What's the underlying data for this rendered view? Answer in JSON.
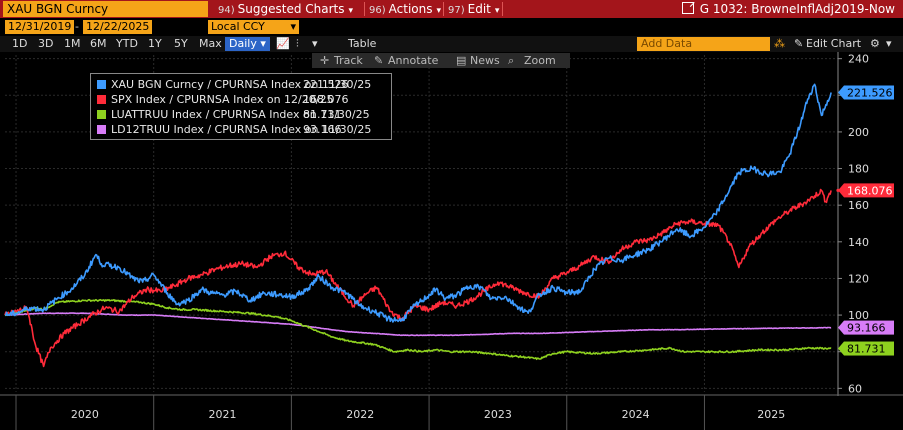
{
  "topbar": {
    "ticker": "XAU BGN Curncy",
    "suggested_num": "94)",
    "suggested_label": "Suggested Charts",
    "actions_num": "96)",
    "actions_label": "Actions",
    "edit_num": "97)",
    "edit_label": "Edit",
    "chart_title": "G 1032: BrowneInflAdj2019-Now"
  },
  "toolbar2": {
    "start_date": "12/31/2019",
    "end_date": "12/22/2025",
    "currency": "Local CCY"
  },
  "toolbar3": {
    "periods": [
      "1D",
      "3D",
      "1M",
      "6M",
      "YTD",
      "1Y",
      "5Y",
      "Max"
    ],
    "frequency": "Daily",
    "table_label": "Table",
    "add_data_placeholder": "Add Data",
    "edit_chart_label": "Edit Chart"
  },
  "chart_tools": {
    "track": "Track",
    "annotate": "Annotate",
    "news": "News",
    "zoom": "Zoom"
  },
  "colors": {
    "accent_orange": "#f5a418",
    "title_red": "#a3151b",
    "series_blue": "#3d9bff",
    "series_red": "#ff2b3a",
    "series_green": "#8ed11f",
    "series_purple": "#d77cf7"
  },
  "chart_data": {
    "type": "line",
    "ylim": [
      58,
      242
    ],
    "y_ticks": [
      60,
      80,
      100,
      120,
      140,
      160,
      180,
      200,
      220,
      240
    ],
    "x_labels": [
      "2020",
      "2021",
      "2022",
      "2023",
      "2024",
      "2025"
    ],
    "x_range": [
      2019.92,
      2025.97
    ],
    "series": [
      {
        "name": "XAU BGN Curncy / CPURNSA Index on 11/30/25",
        "last_value": "221.526",
        "color": "#3d9bff",
        "points": [
          [
            2019.92,
            100
          ],
          [
            2020.0,
            101
          ],
          [
            2020.1,
            104
          ],
          [
            2020.2,
            103
          ],
          [
            2020.3,
            109
          ],
          [
            2020.4,
            114
          ],
          [
            2020.5,
            122
          ],
          [
            2020.58,
            133
          ],
          [
            2020.62,
            128
          ],
          [
            2020.75,
            126
          ],
          [
            2020.85,
            120
          ],
          [
            2020.92,
            118
          ],
          [
            2021.0,
            122
          ],
          [
            2021.1,
            112
          ],
          [
            2021.17,
            106
          ],
          [
            2021.25,
            108
          ],
          [
            2021.35,
            114
          ],
          [
            2021.42,
            112
          ],
          [
            2021.5,
            111
          ],
          [
            2021.6,
            113
          ],
          [
            2021.7,
            108
          ],
          [
            2021.8,
            112
          ],
          [
            2021.92,
            111
          ],
          [
            2022.0,
            110
          ],
          [
            2022.1,
            113
          ],
          [
            2022.2,
            121
          ],
          [
            2022.3,
            115
          ],
          [
            2022.4,
            112
          ],
          [
            2022.5,
            105
          ],
          [
            2022.6,
            102
          ],
          [
            2022.7,
            98
          ],
          [
            2022.8,
            97
          ],
          [
            2022.88,
            104
          ],
          [
            2022.95,
            108
          ],
          [
            2023.05,
            114
          ],
          [
            2023.12,
            109
          ],
          [
            2023.2,
            111
          ],
          [
            2023.3,
            116
          ],
          [
            2023.38,
            115
          ],
          [
            2023.45,
            109
          ],
          [
            2023.55,
            110
          ],
          [
            2023.62,
            106
          ],
          [
            2023.72,
            101
          ],
          [
            2023.8,
            111
          ],
          [
            2023.9,
            115
          ],
          [
            2024.0,
            112
          ],
          [
            2024.1,
            113
          ],
          [
            2024.2,
            125
          ],
          [
            2024.3,
            131
          ],
          [
            2024.4,
            130
          ],
          [
            2024.5,
            133
          ],
          [
            2024.6,
            136
          ],
          [
            2024.7,
            141
          ],
          [
            2024.8,
            147
          ],
          [
            2024.9,
            143
          ],
          [
            2025.0,
            148
          ],
          [
            2025.08,
            155
          ],
          [
            2025.15,
            164
          ],
          [
            2025.25,
            178
          ],
          [
            2025.35,
            180
          ],
          [
            2025.45,
            177
          ],
          [
            2025.55,
            178
          ],
          [
            2025.62,
            188
          ],
          [
            2025.7,
            205
          ],
          [
            2025.75,
            218
          ],
          [
            2025.8,
            226
          ],
          [
            2025.85,
            209
          ],
          [
            2025.92,
            221.526
          ]
        ]
      },
      {
        "name": "SPX Index / CPURNSA Index on 12/20/25",
        "last_value": "168.076",
        "color": "#ff2b3a",
        "points": [
          [
            2019.92,
            100
          ],
          [
            2020.0,
            102
          ],
          [
            2020.08,
            104
          ],
          [
            2020.14,
            84
          ],
          [
            2020.2,
            72
          ],
          [
            2020.25,
            82
          ],
          [
            2020.35,
            90
          ],
          [
            2020.45,
            95
          ],
          [
            2020.55,
            100
          ],
          [
            2020.65,
            104
          ],
          [
            2020.75,
            102
          ],
          [
            2020.85,
            110
          ],
          [
            2020.95,
            114
          ],
          [
            2021.05,
            113
          ],
          [
            2021.15,
            116
          ],
          [
            2021.25,
            120
          ],
          [
            2021.35,
            122
          ],
          [
            2021.45,
            125
          ],
          [
            2021.55,
            127
          ],
          [
            2021.65,
            128
          ],
          [
            2021.75,
            126
          ],
          [
            2021.85,
            132
          ],
          [
            2021.95,
            134
          ],
          [
            2022.05,
            126
          ],
          [
            2022.15,
            122
          ],
          [
            2022.25,
            124
          ],
          [
            2022.35,
            114
          ],
          [
            2022.45,
            105
          ],
          [
            2022.55,
            112
          ],
          [
            2022.62,
            115
          ],
          [
            2022.72,
            102
          ],
          [
            2022.8,
            98
          ],
          [
            2022.9,
            105
          ],
          [
            2023.0,
            103
          ],
          [
            2023.1,
            107
          ],
          [
            2023.2,
            105
          ],
          [
            2023.3,
            108
          ],
          [
            2023.4,
            113
          ],
          [
            2023.5,
            118
          ],
          [
            2023.6,
            115
          ],
          [
            2023.7,
            112
          ],
          [
            2023.8,
            110
          ],
          [
            2023.9,
            120
          ],
          [
            2024.0,
            123
          ],
          [
            2024.1,
            127
          ],
          [
            2024.2,
            132
          ],
          [
            2024.3,
            129
          ],
          [
            2024.4,
            136
          ],
          [
            2024.5,
            140
          ],
          [
            2024.6,
            141
          ],
          [
            2024.7,
            145
          ],
          [
            2024.8,
            150
          ],
          [
            2024.9,
            151
          ],
          [
            2025.0,
            150
          ],
          [
            2025.1,
            149
          ],
          [
            2025.18,
            140
          ],
          [
            2025.25,
            126
          ],
          [
            2025.32,
            137
          ],
          [
            2025.42,
            145
          ],
          [
            2025.52,
            152
          ],
          [
            2025.62,
            157
          ],
          [
            2025.72,
            161
          ],
          [
            2025.8,
            165
          ],
          [
            2025.85,
            168
          ],
          [
            2025.88,
            162
          ],
          [
            2025.92,
            168.076
          ]
        ]
      },
      {
        "name": "LUATTRUU Index / CPURNSA Index on 11/30/25",
        "last_value": "81.731",
        "color": "#8ed11f",
        "points": [
          [
            2019.92,
            100
          ],
          [
            2020.0,
            101
          ],
          [
            2020.15,
            104
          ],
          [
            2020.2,
            103
          ],
          [
            2020.3,
            107
          ],
          [
            2020.5,
            108
          ],
          [
            2020.7,
            108
          ],
          [
            2020.9,
            107
          ],
          [
            2021.0,
            106
          ],
          [
            2021.1,
            104
          ],
          [
            2021.2,
            103
          ],
          [
            2021.3,
            103
          ],
          [
            2021.5,
            102
          ],
          [
            2021.7,
            101
          ],
          [
            2021.9,
            99
          ],
          [
            2022.0,
            97
          ],
          [
            2022.1,
            94
          ],
          [
            2022.2,
            91
          ],
          [
            2022.3,
            88
          ],
          [
            2022.4,
            86
          ],
          [
            2022.5,
            85
          ],
          [
            2022.6,
            84
          ],
          [
            2022.75,
            80
          ],
          [
            2022.85,
            81
          ],
          [
            2022.95,
            80
          ],
          [
            2023.05,
            81
          ],
          [
            2023.15,
            80
          ],
          [
            2023.3,
            80
          ],
          [
            2023.45,
            79
          ],
          [
            2023.55,
            78
          ],
          [
            2023.7,
            77
          ],
          [
            2023.8,
            76
          ],
          [
            2023.9,
            79
          ],
          [
            2024.0,
            80
          ],
          [
            2024.2,
            79
          ],
          [
            2024.4,
            80
          ],
          [
            2024.6,
            81
          ],
          [
            2024.75,
            82
          ],
          [
            2024.85,
            80
          ],
          [
            2025.0,
            80
          ],
          [
            2025.2,
            80
          ],
          [
            2025.4,
            81
          ],
          [
            2025.6,
            81
          ],
          [
            2025.75,
            82
          ],
          [
            2025.92,
            81.731
          ]
        ]
      },
      {
        "name": "LD12TRUU Index / CPURNSA Index on 11/30/25",
        "last_value": "93.166",
        "color": "#d77cf7",
        "points": [
          [
            2019.92,
            100
          ],
          [
            2020.2,
            101
          ],
          [
            2020.5,
            101
          ],
          [
            2020.8,
            100
          ],
          [
            2021.0,
            100
          ],
          [
            2021.2,
            99
          ],
          [
            2021.4,
            98
          ],
          [
            2021.6,
            97
          ],
          [
            2021.8,
            96
          ],
          [
            2022.0,
            95
          ],
          [
            2022.2,
            93
          ],
          [
            2022.4,
            91
          ],
          [
            2022.6,
            90
          ],
          [
            2022.8,
            89
          ],
          [
            2023.0,
            89
          ],
          [
            2023.2,
            89
          ],
          [
            2023.4,
            89.5
          ],
          [
            2023.6,
            90
          ],
          [
            2023.8,
            90
          ],
          [
            2024.0,
            90.5
          ],
          [
            2024.2,
            91
          ],
          [
            2024.4,
            91.5
          ],
          [
            2024.6,
            92
          ],
          [
            2024.8,
            92
          ],
          [
            2025.0,
            92.3
          ],
          [
            2025.2,
            92.5
          ],
          [
            2025.4,
            92.7
          ],
          [
            2025.6,
            92.9
          ],
          [
            2025.8,
            93
          ],
          [
            2025.92,
            93.166
          ]
        ]
      }
    ]
  }
}
